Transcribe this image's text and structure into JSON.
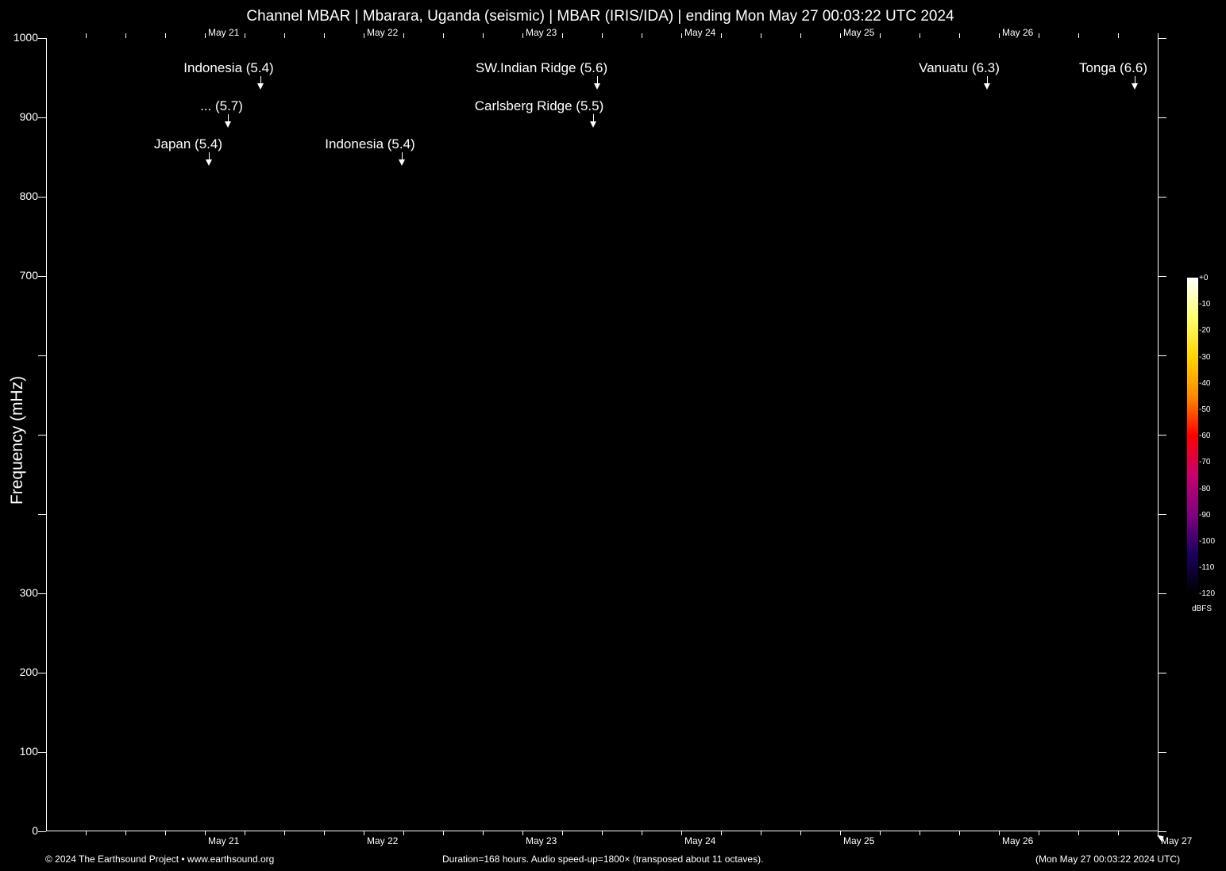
{
  "chart_data": {
    "type": "heatmap",
    "title": "Channel MBAR | Mbarara, Uganda (seismic) | MBAR (IRIS/IDA) | ending Mon May 27 00:03:22 UTC 2024",
    "ylabel": "Frequency (mHz)",
    "ylim": [
      0,
      1000
    ],
    "yticks": [
      0,
      100,
      200,
      300,
      400,
      500,
      600,
      700,
      800,
      900,
      1000
    ],
    "ytick_labels": [
      "0",
      "100",
      "200",
      "300",
      "",
      "",
      "",
      "700",
      "800",
      "900",
      "1000"
    ],
    "xticks": [
      "May 21",
      "May 22",
      "May 23",
      "May 24",
      "May 25",
      "May 26",
      "May 27"
    ],
    "top_xticks": [
      "May 21",
      "May 22",
      "May 23",
      "May 24",
      "May 25",
      "May 26"
    ],
    "events": [
      {
        "label": "Indonesia (5.4)"
      },
      {
        "label": "... (5.7)"
      },
      {
        "label": "Japan (5.4)"
      },
      {
        "label": "Indonesia (5.4)"
      },
      {
        "label": "SW.Indian Ridge (5.6)"
      },
      {
        "label": "Carlsberg Ridge (5.5)"
      },
      {
        "label": "Vanuatu (6.3)"
      },
      {
        "label": "Tonga (6.6)"
      }
    ],
    "colorbar": {
      "unit": "dBFS",
      "range": [
        -120,
        0
      ],
      "labels": [
        "+0",
        "-10",
        "-20",
        "-30",
        "-40",
        "-50",
        "-60",
        "-70",
        "-80",
        "-90",
        "-100",
        "-110",
        "-120"
      ],
      "colors": [
        "#ffffff",
        "#ffff70",
        "#ffd700",
        "#ff8c00",
        "#ff0000",
        "#c8006e",
        "#800080",
        "#1a0060",
        "#000000"
      ]
    },
    "grid": false
  },
  "footer": {
    "left": "© 2024 The Earthsound Project • www.earthsound.org",
    "center": "Duration=168 hours. Audio speed-up=1800× (transposed about 11 octaves).",
    "right": "(Mon May 27 00:03:22 2024 UTC)"
  }
}
